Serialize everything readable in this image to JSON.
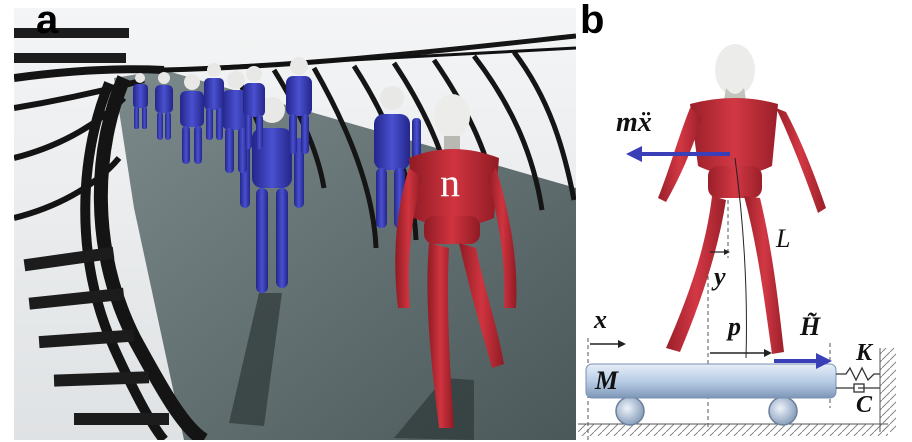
{
  "panel_a": {
    "label": "a",
    "walker_letter": "n"
  },
  "panel_b": {
    "label": "b",
    "symbols": {
      "inertial_force": "mẍ",
      "x": "x",
      "y": "y",
      "L": "L",
      "p": "p",
      "H": "H̃",
      "M": "M",
      "K": "K",
      "C": "C"
    }
  },
  "colors": {
    "pedestrian_red": "#c42a35",
    "pedestrian_blue": "#3a3fb8",
    "arrow_blue": "#3a3fb8",
    "deck": "#5f6e70",
    "beam": "#b9cde6"
  }
}
